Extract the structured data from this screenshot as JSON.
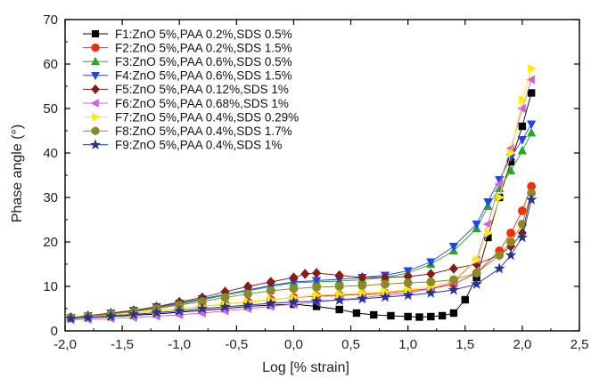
{
  "chart_data": {
    "type": "scatter",
    "xlabel": "Log [% strain]",
    "ylabel": "Phase angle (°)",
    "xlim": [
      -2.0,
      2.5
    ],
    "ylim": [
      0,
      70
    ],
    "xticks": [
      "-2,0",
      "-1,5",
      "-1,0",
      "-0,5",
      "0,0",
      "0,5",
      "1,0",
      "1,5",
      "2,0",
      "2,5"
    ],
    "yticks": [
      "0",
      "10",
      "20",
      "30",
      "40",
      "50",
      "60",
      "70"
    ],
    "grid": false,
    "legend_position": "top-left",
    "series": [
      {
        "name": "F1:ZnO 5%,PAA 0.2%,SDS 0.5%",
        "color": "#000000",
        "marker": "square",
        "x": [
          -1.95,
          -1.8,
          -1.6,
          -1.4,
          -1.2,
          -1.0,
          -0.8,
          -0.6,
          -0.4,
          -0.2,
          0.0,
          0.2,
          0.4,
          0.55,
          0.7,
          0.85,
          1.0,
          1.1,
          1.2,
          1.3,
          1.4,
          1.5,
          1.6,
          1.7,
          1.8,
          1.9,
          2.0,
          2.08
        ],
        "y": [
          2.8,
          3,
          3.2,
          3.5,
          3.8,
          4.2,
          4.6,
          5,
          5.5,
          5.8,
          6,
          5.5,
          4.8,
          4,
          3.6,
          3.4,
          3.2,
          3.1,
          3.2,
          3.4,
          4,
          7,
          12,
          21,
          30,
          38,
          46,
          53.5
        ]
      },
      {
        "name": "F2:ZnO 5%,PAA 0.2%,SDS 1.5%",
        "color": "#ff2a00",
        "marker": "circle",
        "x": [
          -1.95,
          -1.8,
          -1.6,
          -1.4,
          -1.2,
          -1.0,
          -0.8,
          -0.6,
          -0.4,
          -0.2,
          0.0,
          0.2,
          0.4,
          0.6,
          0.8,
          1.0,
          1.2,
          1.4,
          1.6,
          1.8,
          1.9,
          2.0,
          2.08
        ],
        "y": [
          3,
          3.2,
          3.5,
          4,
          4.5,
          5,
          5.5,
          6,
          6.5,
          7,
          7.5,
          7.8,
          8,
          8.2,
          8.5,
          9,
          9.5,
          10.5,
          13,
          18,
          22,
          27,
          32.5
        ]
      },
      {
        "name": "F3:ZnO 5%,PAA 0.6%,SDS 0.5%",
        "color": "#22aa22",
        "marker": "triangle-up",
        "x": [
          -1.95,
          -1.8,
          -1.6,
          -1.4,
          -1.2,
          -1.0,
          -0.8,
          -0.6,
          -0.4,
          -0.2,
          0.0,
          0.2,
          0.4,
          0.6,
          0.8,
          1.0,
          1.2,
          1.4,
          1.6,
          1.7,
          1.8,
          1.9,
          2.0,
          2.08
        ],
        "y": [
          3,
          3.3,
          3.8,
          4.5,
          5.2,
          6,
          7,
          8,
          9,
          10,
          10.8,
          11,
          11.2,
          11.5,
          12,
          13,
          15,
          18,
          23,
          28,
          32,
          36,
          40.5,
          44.5
        ]
      },
      {
        "name": "F4:ZnO 5%,PAA 0.6%,SDS 1.5%",
        "color": "#2244ee",
        "marker": "triangle-down",
        "x": [
          -1.95,
          -1.8,
          -1.6,
          -1.4,
          -1.2,
          -1.0,
          -0.8,
          -0.6,
          -0.4,
          -0.2,
          0.0,
          0.2,
          0.4,
          0.6,
          0.8,
          1.0,
          1.2,
          1.4,
          1.6,
          1.7,
          1.8,
          1.9,
          2.0,
          2.08
        ],
        "y": [
          3,
          3.4,
          4,
          4.6,
          5.4,
          6.2,
          7.2,
          8.2,
          9.2,
          10.2,
          11,
          11.3,
          11.6,
          12,
          12.5,
          13.5,
          15.5,
          19,
          24,
          29,
          34,
          39,
          43,
          46.5
        ]
      },
      {
        "name": "F5:ZnO 5%,PAA 0.12%,SDS 1%",
        "color": "#8b1a10",
        "marker": "diamond",
        "x": [
          -1.95,
          -1.8,
          -1.6,
          -1.4,
          -1.2,
          -1.0,
          -0.8,
          -0.6,
          -0.4,
          -0.2,
          0.0,
          0.1,
          0.2,
          0.4,
          0.6,
          0.8,
          1.0,
          1.2,
          1.4,
          1.6,
          1.8,
          1.9,
          2.0,
          2.08
        ],
        "y": [
          3,
          3.4,
          4,
          4.6,
          5.4,
          6.5,
          7.5,
          8.8,
          10,
          11,
          12,
          12.8,
          13,
          12.5,
          12,
          12,
          12.2,
          12.8,
          14,
          15,
          17,
          19,
          22,
          31
        ]
      },
      {
        "name": "F6:ZnO 5%,PAA 0.68%,SDS 1%",
        "color": "#cc66dd",
        "marker": "triangle-left",
        "x": [
          -1.95,
          -1.8,
          -1.6,
          -1.4,
          -1.2,
          -1.0,
          -0.8,
          -0.6,
          -0.4,
          -0.2,
          0.0,
          0.2,
          0.4,
          0.6,
          0.8,
          1.0,
          1.2,
          1.4,
          1.6,
          1.7,
          1.8,
          1.9,
          2.0,
          2.08
        ],
        "y": [
          2.5,
          2.6,
          2.8,
          3,
          3.3,
          3.6,
          4,
          4.5,
          5,
          5.5,
          6,
          6.5,
          7,
          7.5,
          8,
          8.5,
          9.5,
          11,
          16,
          24,
          33,
          41,
          50,
          56.5
        ]
      },
      {
        "name": "F7:ZnO 5%,PAA 0.4%,SDS 0.29%",
        "color": "#ffee00",
        "marker": "triangle-right",
        "x": [
          -1.95,
          -1.8,
          -1.6,
          -1.4,
          -1.2,
          -1.0,
          -0.8,
          -0.6,
          -0.4,
          -0.2,
          0.0,
          0.2,
          0.4,
          0.6,
          0.8,
          1.0,
          1.2,
          1.4,
          1.6,
          1.7,
          1.8,
          1.9,
          2.0,
          2.08
        ],
        "y": [
          3,
          3.2,
          3.6,
          4,
          4.5,
          5,
          5.5,
          6,
          6.5,
          7,
          7.5,
          8,
          8.2,
          8.5,
          8.8,
          9.2,
          10,
          11.5,
          16,
          22,
          30,
          40,
          52,
          59
        ]
      },
      {
        "name": "F8:ZnO 5%,PAA 0.4%,SDS 1.7%",
        "color": "#8a8a2a",
        "marker": "circle",
        "x": [
          -1.95,
          -1.8,
          -1.6,
          -1.4,
          -1.2,
          -1.0,
          -0.8,
          -0.6,
          -0.4,
          -0.2,
          0.0,
          0.2,
          0.4,
          0.6,
          0.8,
          1.0,
          1.2,
          1.4,
          1.6,
          1.8,
          1.9,
          2.0,
          2.08
        ],
        "y": [
          3,
          3.3,
          3.8,
          4.3,
          5,
          5.8,
          6.6,
          7.5,
          8.3,
          9,
          9.5,
          9.8,
          10,
          10.2,
          10.5,
          10.8,
          11,
          11.5,
          13,
          17,
          20,
          24,
          31
        ]
      },
      {
        "name": "F9:ZnO 5%,PAA 0.4%,SDS 1%",
        "color": "#22319a",
        "marker": "star",
        "x": [
          -1.95,
          -1.8,
          -1.6,
          -1.4,
          -1.2,
          -1.0,
          -0.8,
          -0.6,
          -0.4,
          -0.2,
          0.0,
          0.2,
          0.4,
          0.6,
          0.8,
          1.0,
          1.2,
          1.4,
          1.6,
          1.8,
          1.9,
          2.0,
          2.08
        ],
        "y": [
          2.8,
          3,
          3.3,
          3.7,
          4.1,
          4.5,
          5,
          5.4,
          5.8,
          6.2,
          6.5,
          6.7,
          6.9,
          7.2,
          7.6,
          8,
          8.5,
          9.2,
          10.5,
          14,
          17,
          21,
          29.5
        ]
      }
    ]
  }
}
